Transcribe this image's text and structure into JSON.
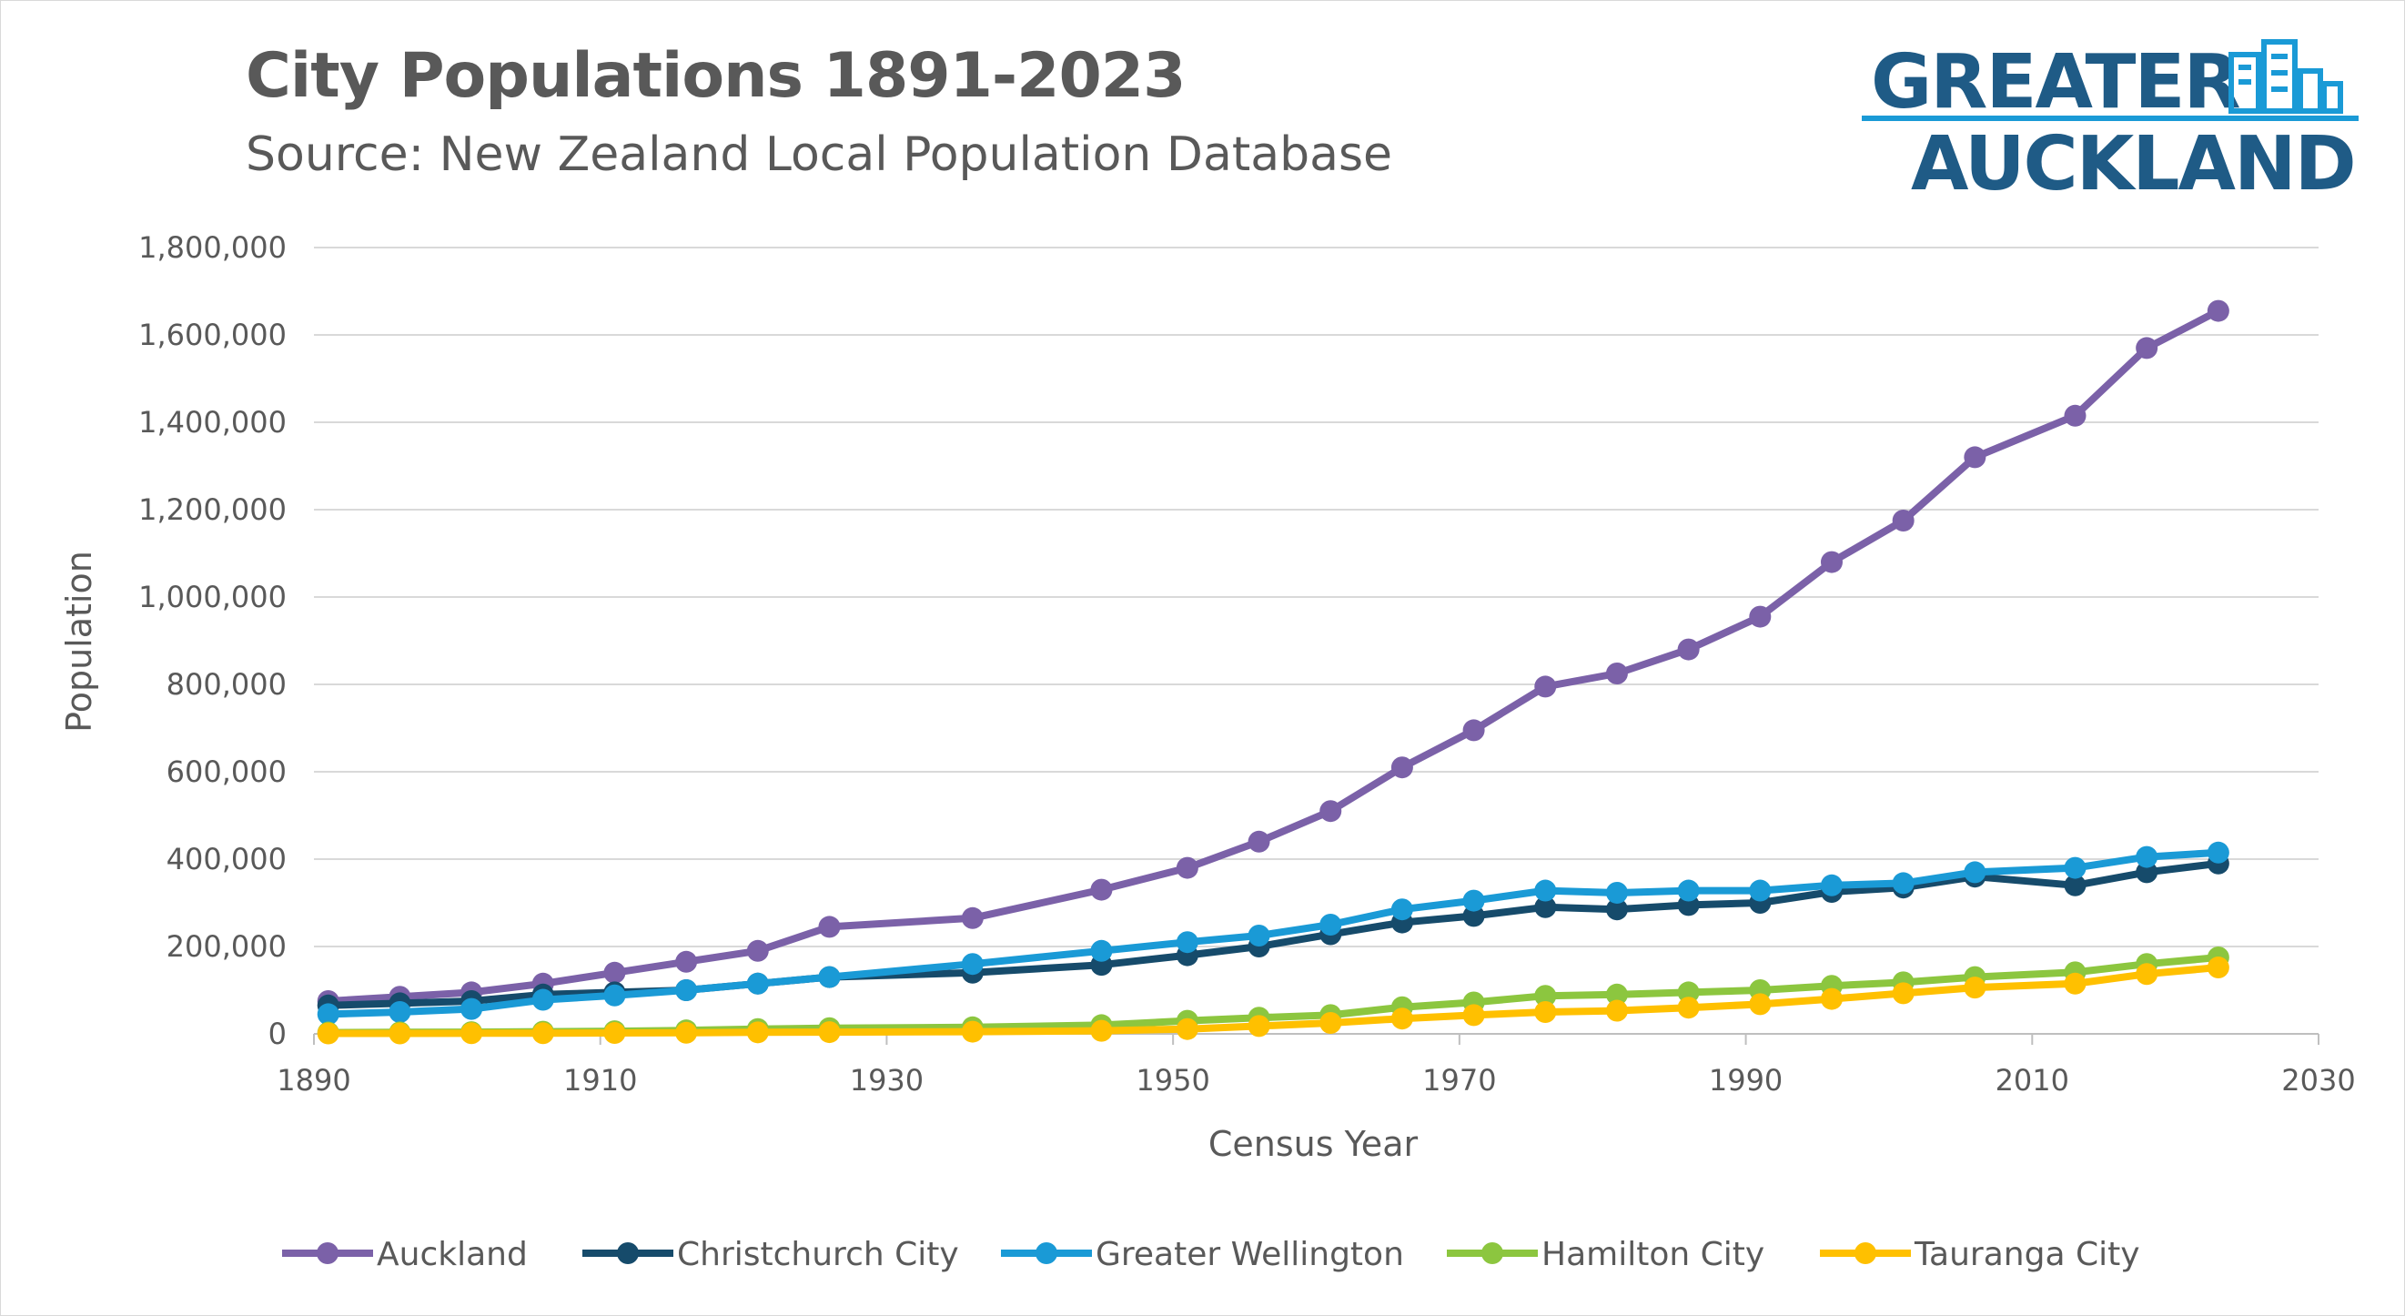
{
  "header": {
    "title": "City Populations 1891-2023",
    "subtitle": "Source: New Zealand Local Population Database"
  },
  "logo": {
    "line1": "GREATER",
    "line2": "AUCKLAND",
    "icon": "city-buildings-icon",
    "color": "#1f5b86"
  },
  "chart_data": {
    "type": "line",
    "title": "City Populations 1891-2023",
    "subtitle": "Source: New Zealand Local Population Database",
    "xlabel": "Census Year",
    "ylabel": "Population",
    "xlim": [
      1890,
      2030
    ],
    "ylim": [
      0,
      1800000
    ],
    "xticks": [
      1890,
      1910,
      1930,
      1950,
      1970,
      1990,
      2010,
      2030
    ],
    "yticks": [
      0,
      200000,
      400000,
      600000,
      800000,
      1000000,
      1200000,
      1400000,
      1600000,
      1800000
    ],
    "xtick_labels": [
      "1890",
      "1910",
      "1930",
      "1950",
      "1970",
      "1990",
      "2010",
      "2030"
    ],
    "ytick_labels": [
      "0",
      "200,000",
      "400,000",
      "600,000",
      "800,000",
      "1,000,000",
      "1,200,000",
      "1,400,000",
      "1,600,000",
      "1,800,000"
    ],
    "grid": "horizontal",
    "legend_position": "bottom",
    "x": [
      1891,
      1896,
      1901,
      1906,
      1911,
      1916,
      1921,
      1926,
      1936,
      1945,
      1951,
      1956,
      1961,
      1966,
      1971,
      1976,
      1981,
      1986,
      1991,
      1996,
      2001,
      2006,
      2013,
      2018,
      2023
    ],
    "series": [
      {
        "name": "Auckland",
        "color": "#7b61a8",
        "values": [
          75000,
          85000,
          95000,
          115000,
          140000,
          165000,
          190000,
          245000,
          265000,
          330000,
          380000,
          440000,
          510000,
          610000,
          695000,
          795000,
          825000,
          880000,
          955000,
          1080000,
          1175000,
          1320000,
          1415000,
          1570000,
          1655000
        ]
      },
      {
        "name": "Christchurch City",
        "color": "#164b6b",
        "values": [
          65000,
          70000,
          75000,
          90000,
          95000,
          100000,
          115000,
          130000,
          140000,
          158000,
          180000,
          200000,
          228000,
          255000,
          270000,
          290000,
          285000,
          295000,
          300000,
          325000,
          335000,
          360000,
          340000,
          370000,
          390000
        ]
      },
      {
        "name": "Greater Wellington",
        "color": "#1a9ad6",
        "values": [
          45000,
          50000,
          57000,
          78000,
          88000,
          100000,
          115000,
          130000,
          160000,
          190000,
          210000,
          225000,
          250000,
          285000,
          305000,
          328000,
          323000,
          328000,
          328000,
          340000,
          345000,
          370000,
          380000,
          405000,
          415000
        ]
      },
      {
        "name": "Hamilton City",
        "color": "#8cc63f",
        "values": [
          3000,
          3500,
          4000,
          5000,
          6000,
          8000,
          11000,
          13000,
          15000,
          20000,
          30000,
          37000,
          43000,
          61000,
          72000,
          87000,
          90000,
          95000,
          100000,
          110000,
          118000,
          130000,
          141000,
          160000,
          175000
        ]
      },
      {
        "name": "Tauranga City",
        "color": "#ffc000",
        "values": [
          1000,
          1000,
          1500,
          1500,
          2000,
          2500,
          3500,
          4000,
          5000,
          7000,
          11000,
          18000,
          25000,
          35000,
          43000,
          50000,
          53000,
          60000,
          68000,
          80000,
          93000,
          106000,
          115000,
          137000,
          152000
        ]
      }
    ]
  }
}
